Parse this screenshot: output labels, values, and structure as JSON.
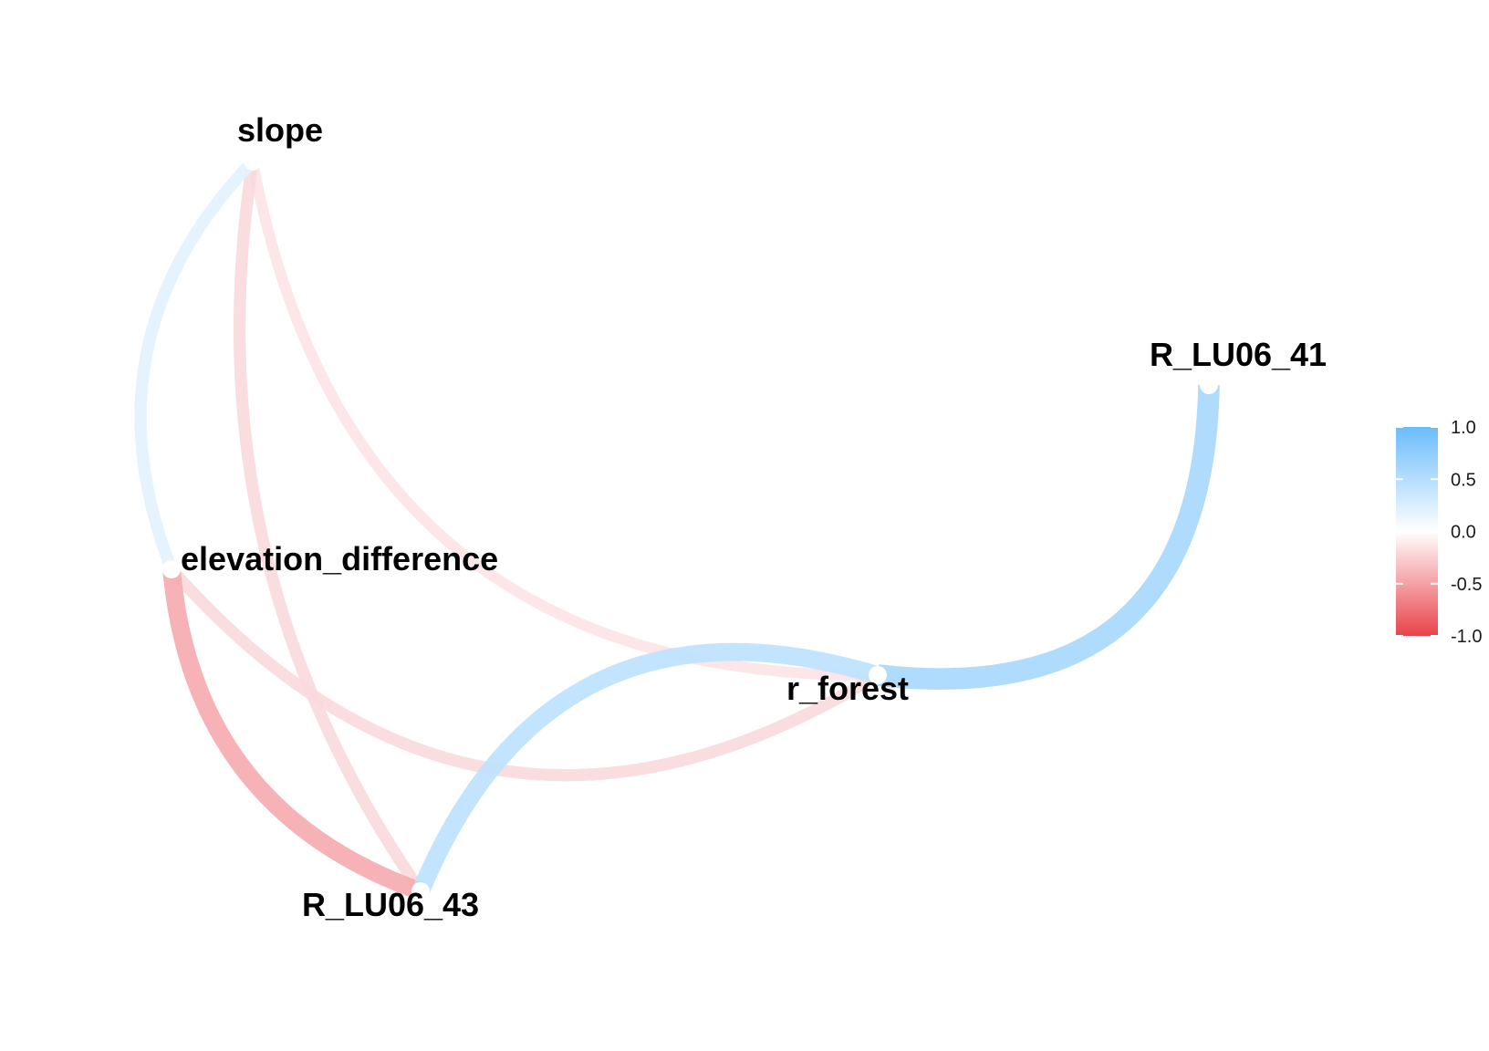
{
  "chart_data": {
    "type": "network",
    "title": "",
    "nodes": [
      {
        "id": "slope",
        "label": "slope"
      },
      {
        "id": "elevation_difference",
        "label": "elevation_difference"
      },
      {
        "id": "R_LU06_43",
        "label": "R_LU06_43"
      },
      {
        "id": "r_forest",
        "label": "r_forest"
      },
      {
        "id": "R_LU06_41",
        "label": "R_LU06_41"
      }
    ],
    "edges": [
      {
        "from": "slope",
        "to": "r_forest",
        "value": -0.15
      },
      {
        "from": "slope",
        "to": "R_LU06_43",
        "value": -0.2
      },
      {
        "from": "slope",
        "to": "elevation_difference",
        "value": 0.2
      },
      {
        "from": "elevation_difference",
        "to": "r_forest",
        "value": -0.2
      },
      {
        "from": "elevation_difference",
        "to": "R_LU06_43",
        "value": -0.45
      },
      {
        "from": "R_LU06_43",
        "to": "r_forest",
        "value": 0.45
      },
      {
        "from": "r_forest",
        "to": "R_LU06_41",
        "value": 0.6
      }
    ],
    "legend": {
      "position": "right",
      "ticks": [
        "1.0",
        "0.5",
        "0.0",
        "-0.5",
        "-1.0"
      ],
      "tick_values": [
        1.0,
        0.5,
        0.0,
        -0.5,
        -1.0
      ],
      "range": [
        -1.0,
        1.0
      ],
      "colors": {
        "negative": "#e8434a",
        "zero": "#ffffff",
        "positive": "#6bbcfc"
      }
    }
  }
}
